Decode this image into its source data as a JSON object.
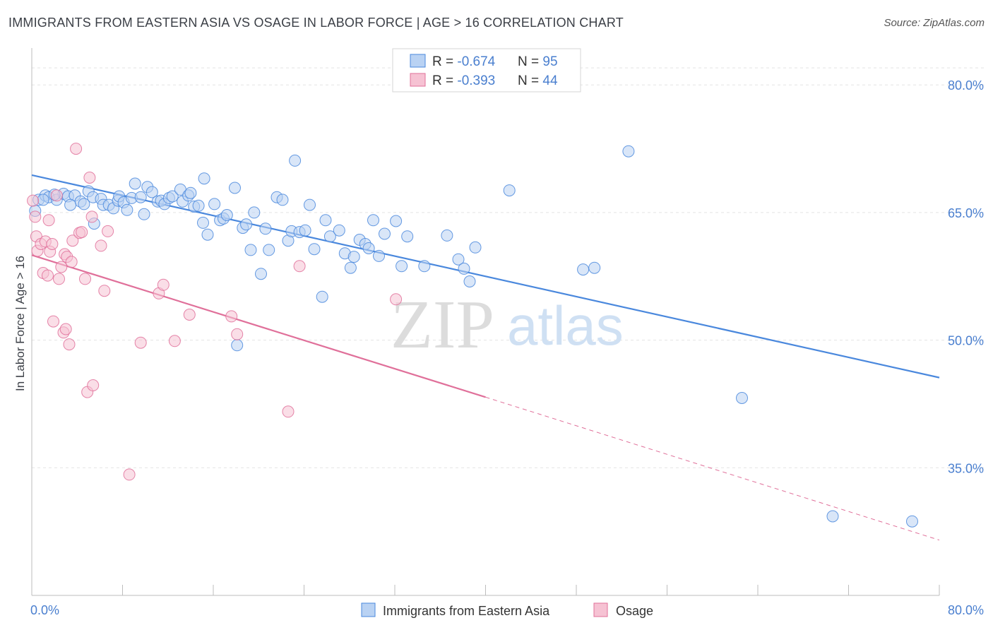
{
  "title": "IMMIGRANTS FROM EASTERN ASIA VS OSAGE IN LABOR FORCE | AGE > 16 CORRELATION CHART",
  "source": "Source: ZipAtlas.com",
  "watermark": {
    "zip": "ZIP",
    "atlas": "atlas"
  },
  "colors": {
    "blue": "#4a88dd",
    "blue_fill": "#b9d2f3",
    "pink": "#e0709a",
    "pink_fill": "#f6c2d3",
    "tick": "#4a7fcf"
  },
  "legend_top": [
    {
      "r_label": "R = ",
      "r_value": "-0.674",
      "n_label": "N = ",
      "n_value": "95"
    },
    {
      "r_label": "R = ",
      "r_value": "-0.393",
      "n_label": "N = ",
      "n_value": "44"
    }
  ],
  "chart_data": {
    "type": "scatter",
    "title": "IMMIGRANTS FROM EASTERN ASIA VS OSAGE IN LABOR FORCE | AGE > 16 CORRELATION CHART",
    "ylabel": "In Labor Force | Age > 16",
    "xlim": [
      0,
      80
    ],
    "ylim": [
      20,
      85
    ],
    "x_tick_labels": [
      "0.0%",
      "80.0%"
    ],
    "y_ticks": [
      35,
      50,
      65,
      80
    ],
    "y_tick_labels": [
      "35.0%",
      "50.0%",
      "65.0%",
      "80.0%"
    ],
    "grid": true,
    "legend_position": "top-center",
    "series": [
      {
        "name": "Immigrants from Eastern Asia",
        "color": "#4a88dd",
        "trend": {
          "x": [
            0,
            80
          ],
          "y": [
            69.4,
            45.6
          ]
        },
        "points": [
          [
            0.3,
            65.2
          ],
          [
            0.6,
            66.5
          ],
          [
            1.2,
            67.0
          ],
          [
            1.5,
            66.8
          ],
          [
            2.2,
            66.5
          ],
          [
            2.8,
            67.2
          ],
          [
            3.2,
            66.9
          ],
          [
            3.8,
            67.0
          ],
          [
            4.3,
            66.3
          ],
          [
            4.6,
            66.0
          ],
          [
            5.0,
            67.5
          ],
          [
            5.4,
            66.8
          ],
          [
            5.5,
            63.7
          ],
          [
            6.1,
            66.6
          ],
          [
            6.3,
            65.9
          ],
          [
            6.8,
            65.9
          ],
          [
            7.2,
            65.5
          ],
          [
            7.6,
            66.4
          ],
          [
            7.7,
            66.9
          ],
          [
            8.1,
            66.2
          ],
          [
            8.4,
            65.3
          ],
          [
            8.8,
            66.7
          ],
          [
            9.1,
            68.4
          ],
          [
            9.6,
            66.8
          ],
          [
            9.9,
            64.8
          ],
          [
            10.2,
            68.0
          ],
          [
            10.6,
            67.4
          ],
          [
            11.1,
            66.3
          ],
          [
            11.4,
            66.4
          ],
          [
            11.7,
            66.0
          ],
          [
            12.1,
            66.7
          ],
          [
            12.4,
            66.9
          ],
          [
            13.1,
            67.7
          ],
          [
            13.3,
            66.3
          ],
          [
            13.8,
            67.0
          ],
          [
            14.0,
            67.3
          ],
          [
            14.3,
            65.7
          ],
          [
            14.7,
            65.8
          ],
          [
            15.1,
            63.8
          ],
          [
            15.5,
            62.4
          ],
          [
            15.2,
            69.0
          ],
          [
            16.1,
            66.0
          ],
          [
            16.6,
            64.1
          ],
          [
            16.9,
            64.3
          ],
          [
            17.2,
            64.7
          ],
          [
            17.9,
            67.9
          ],
          [
            18.6,
            63.2
          ],
          [
            18.9,
            63.6
          ],
          [
            19.3,
            60.6
          ],
          [
            19.6,
            65.0
          ],
          [
            20.2,
            57.8
          ],
          [
            20.6,
            63.1
          ],
          [
            20.9,
            60.6
          ],
          [
            21.6,
            66.8
          ],
          [
            22.1,
            66.5
          ],
          [
            22.6,
            61.7
          ],
          [
            22.9,
            62.8
          ],
          [
            23.2,
            71.1
          ],
          [
            23.6,
            62.7
          ],
          [
            24.1,
            62.9
          ],
          [
            24.5,
            65.9
          ],
          [
            24.9,
            60.7
          ],
          [
            25.6,
            55.1
          ],
          [
            25.9,
            64.1
          ],
          [
            26.3,
            62.2
          ],
          [
            27.1,
            62.9
          ],
          [
            27.6,
            60.2
          ],
          [
            28.1,
            58.5
          ],
          [
            28.4,
            59.8
          ],
          [
            28.9,
            61.8
          ],
          [
            29.4,
            61.3
          ],
          [
            29.7,
            60.8
          ],
          [
            30.1,
            64.1
          ],
          [
            30.6,
            59.9
          ],
          [
            31.1,
            62.5
          ],
          [
            32.1,
            64.0
          ],
          [
            32.6,
            58.7
          ],
          [
            33.1,
            62.2
          ],
          [
            34.6,
            58.7
          ],
          [
            36.6,
            62.3
          ],
          [
            37.6,
            59.5
          ],
          [
            38.1,
            58.4
          ],
          [
            38.6,
            56.9
          ],
          [
            39.1,
            60.9
          ],
          [
            42.1,
            67.6
          ],
          [
            48.6,
            58.3
          ],
          [
            49.6,
            58.5
          ],
          [
            52.6,
            72.2
          ],
          [
            62.6,
            43.2
          ],
          [
            70.6,
            29.3
          ],
          [
            77.6,
            28.7
          ],
          [
            18.1,
            49.4
          ],
          [
            2.0,
            67.1
          ],
          [
            3.4,
            65.9
          ],
          [
            1.0,
            66.5
          ]
        ]
      },
      {
        "name": "Osage",
        "color": "#e0709a",
        "trend": {
          "x": [
            0,
            40
          ],
          "y": [
            60.0,
            43.3
          ]
        },
        "trend_ext": {
          "x": [
            40,
            80
          ],
          "y": [
            43.3,
            26.5
          ]
        },
        "points": [
          [
            0.1,
            66.4
          ],
          [
            0.3,
            64.5
          ],
          [
            0.4,
            62.2
          ],
          [
            0.5,
            60.5
          ],
          [
            0.8,
            61.3
          ],
          [
            1.0,
            57.9
          ],
          [
            1.2,
            61.6
          ],
          [
            1.4,
            57.6
          ],
          [
            1.5,
            64.1
          ],
          [
            1.6,
            60.4
          ],
          [
            1.8,
            61.3
          ],
          [
            1.9,
            52.2
          ],
          [
            2.2,
            67.0
          ],
          [
            2.4,
            57.2
          ],
          [
            2.6,
            58.6
          ],
          [
            2.8,
            50.9
          ],
          [
            2.9,
            60.1
          ],
          [
            3.0,
            51.3
          ],
          [
            3.1,
            59.8
          ],
          [
            3.3,
            49.5
          ],
          [
            3.5,
            59.2
          ],
          [
            3.6,
            61.7
          ],
          [
            3.9,
            72.5
          ],
          [
            4.2,
            62.6
          ],
          [
            4.4,
            62.7
          ],
          [
            4.7,
            57.2
          ],
          [
            4.9,
            43.9
          ],
          [
            5.1,
            69.1
          ],
          [
            5.3,
            64.5
          ],
          [
            5.4,
            44.7
          ],
          [
            6.1,
            61.1
          ],
          [
            6.4,
            55.8
          ],
          [
            6.7,
            62.8
          ],
          [
            8.6,
            34.2
          ],
          [
            9.6,
            49.7
          ],
          [
            11.2,
            55.5
          ],
          [
            11.6,
            56.5
          ],
          [
            12.6,
            49.9
          ],
          [
            13.9,
            53.0
          ],
          [
            17.6,
            52.8
          ],
          [
            18.1,
            50.7
          ],
          [
            22.6,
            41.6
          ],
          [
            23.6,
            58.7
          ],
          [
            32.1,
            54.8
          ]
        ]
      }
    ]
  }
}
